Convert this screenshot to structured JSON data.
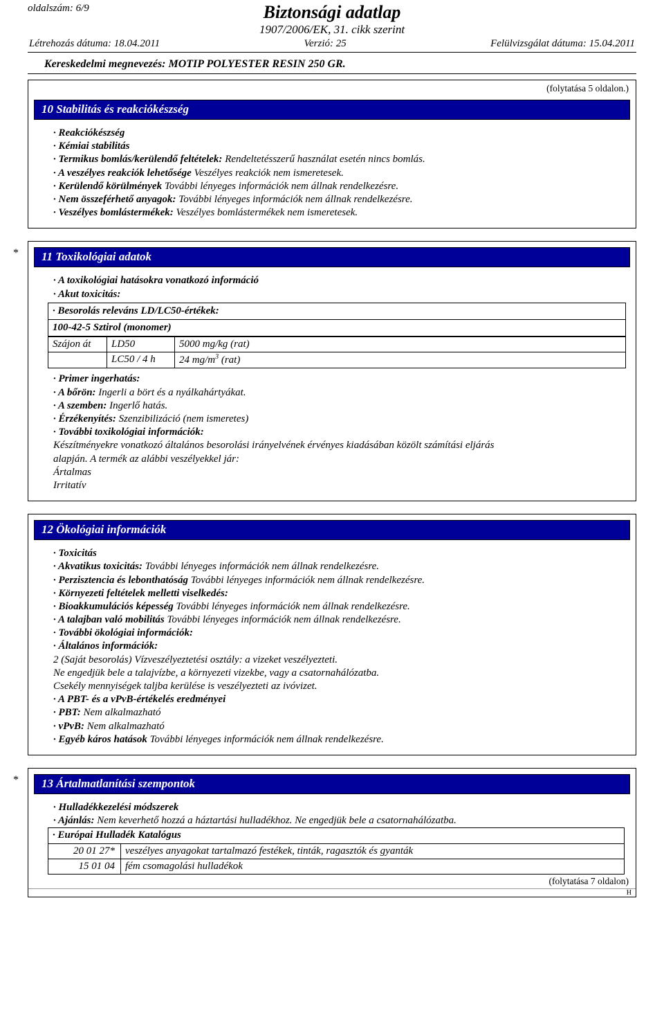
{
  "header": {
    "page_num": "oldalszám: 6/9",
    "main_title": "Biztonsági adatlap",
    "sub_title": "1907/2006/EK, 31. cikk szerint",
    "created": "Létrehozás dátuma: 18.04.2011",
    "version": "Verzió: 25",
    "revised": "Felülvizsgálat dátuma: 15.04.2011",
    "product": "Kereskedelmi megnevezés: MOTIP POLYESTER RESIN 250 GR."
  },
  "continuation_top": "(folytatása 5 oldalon.)",
  "continuation_bottom": "(folytatása 7 oldalon)",
  "h_mark": "H",
  "section10": {
    "title": "10 Stabilitás és reakciókészség",
    "lines": [
      {
        "label": "· Reakciókészség",
        "text": ""
      },
      {
        "label": "· Kémiai stabilitás",
        "text": ""
      },
      {
        "label": "· Termikus bomlás/kerülendő feltételek:",
        "text": " Rendeltetésszerű használat esetén nincs bomlás."
      },
      {
        "label": "· A veszélyes reakciók lehetősége",
        "text": " Veszélyes reakciók nem ismeretesek."
      },
      {
        "label": "· Kerülendő körülmények",
        "text": " További lényeges információk nem állnak rendelkezésre."
      },
      {
        "label": "· Nem összeférhető anyagok:",
        "text": " További lényeges információk nem állnak rendelkezésre."
      },
      {
        "label": "· Veszélyes bomlástermékek:",
        "text": " Veszélyes bomlástermékek nem ismeretesek."
      }
    ]
  },
  "section11": {
    "title": "11 Toxikológiai adatok",
    "pre_lines": [
      {
        "label": "· A toxikológiai hatásokra vonatkozó információ",
        "text": ""
      },
      {
        "label": "· Akut toxicitás:",
        "text": ""
      }
    ],
    "class_header": "· Besorolás releváns LD/LC50-értékek:",
    "substance": "100-42-5 Sztirol (monomer)",
    "tox_rows": [
      {
        "route": "Szájon át",
        "metric": "LD50",
        "value": "5000 mg/kg (rat)"
      },
      {
        "route": "",
        "metric": "LC50 / 4 h",
        "value": "24 mg/m³ (rat)"
      }
    ],
    "post_lines": [
      {
        "label": "· Primer ingerhatás:",
        "text": ""
      },
      {
        "label": "· A bőrön:",
        "text": " Ingerli a bört és a nyálkahártyákat."
      },
      {
        "label": "· A szemben:",
        "text": " Ingerlő hatás."
      },
      {
        "label": "· Érzékenyítés:",
        "text": " Szenzibilizáció (nem ismeretes)"
      },
      {
        "label": "· További toxikológiai információk:",
        "text": ""
      }
    ],
    "plain_lines": [
      "Készítményekre vonatkozó általános besorolási irányelvének érvényes kiadásában közölt számítási eljárás",
      "alapján. A termék az alábbi veszélyekkel jár:",
      "Ártalmas",
      "Irritatív"
    ]
  },
  "section12": {
    "title": "12 Ökológiai információk",
    "lines": [
      {
        "label": "· Toxicitás",
        "text": ""
      },
      {
        "label": "· Akvatikus toxicitás:",
        "text": " További lényeges információk nem állnak rendelkezésre."
      },
      {
        "label": "· Perzisztencia és lebonthatóság",
        "text": " További lényeges információk nem állnak rendelkezésre."
      },
      {
        "label": "· Környezeti feltételek melletti viselkedés:",
        "text": ""
      },
      {
        "label": "· Bioakkumulációs képesség",
        "text": " További lényeges információk nem állnak rendelkezésre."
      },
      {
        "label": "· A talajban való mobilitás",
        "text": " További lényeges információk nem állnak rendelkezésre."
      },
      {
        "label": "· További ökológiai információk:",
        "text": ""
      },
      {
        "label": "· Általános információk:",
        "text": ""
      }
    ],
    "plain_lines": [
      "2 (Saját besorolás) Vízveszélyeztetési osztály: a vizeket veszélyezteti.",
      "Ne engedjük bele a talajvízbe, a környezeti vizekbe, vagy a csatornahálózatba.",
      "Csekély mennyiségek taljba kerülése is veszélyezteti az ivóvizet."
    ],
    "lines2": [
      {
        "label": "· A PBT- és a vPvB-értékelés eredményei",
        "text": ""
      },
      {
        "label": "· PBT:",
        "text": " Nem alkalmazható"
      },
      {
        "label": "· vPvB:",
        "text": " Nem alkalmazható"
      },
      {
        "label": "· Egyéb káros hatások",
        "text": " További lényeges információk nem állnak rendelkezésre."
      }
    ]
  },
  "section13": {
    "title": "13 Ártalmatlanítási szempontok",
    "lines": [
      {
        "label": "· Hulladékkezelési módszerek",
        "text": ""
      },
      {
        "label": "· Ajánlás:",
        "text": " Nem keverhető hozzá a háztartási hulladékhoz. Ne engedjük bele a csatornahálózatba."
      }
    ],
    "waste_header": "· Európai Hulladék Katalógus",
    "waste_rows": [
      {
        "code": "20 01 27*",
        "text": "veszélyes anyagokat tartalmazó festékek, tinták, ragasztók és gyanták"
      },
      {
        "code": "15 01 04",
        "text": "fém csomagolási hulladékok"
      }
    ]
  }
}
